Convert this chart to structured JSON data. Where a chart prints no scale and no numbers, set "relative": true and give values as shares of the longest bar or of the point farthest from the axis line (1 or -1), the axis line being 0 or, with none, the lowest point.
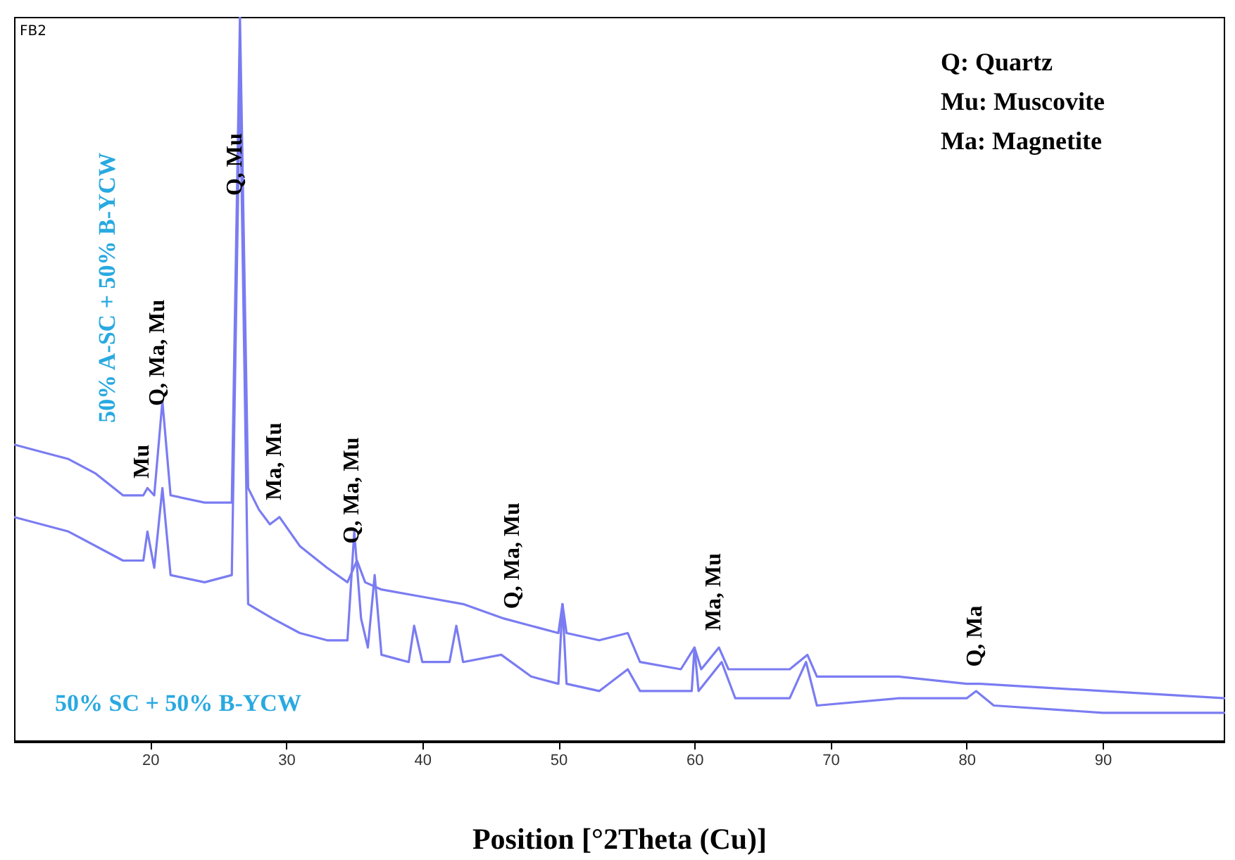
{
  "chart_data": {
    "type": "line",
    "relative": true,
    "xlabel": "Position [°2Theta (Cu)]",
    "xlim": [
      10,
      99
    ],
    "xticks": [
      20,
      30,
      40,
      50,
      60,
      70,
      80,
      90
    ],
    "series": [
      {
        "name": "50% A-SC + 50% B-YCW",
        "color": "#7a7cf2",
        "x": [
          10,
          12,
          14,
          16,
          18,
          19.5,
          19.8,
          20.3,
          20.9,
          21.5,
          24,
          26,
          26.6,
          27.2,
          28,
          28.8,
          29.5,
          31,
          33,
          34.5,
          35.2,
          35.8,
          37,
          40,
          43,
          46,
          48,
          50,
          50.3,
          50.6,
          53,
          55.1,
          56,
          59,
          60,
          60.5,
          61.8,
          62.5,
          67,
          68.3,
          69,
          75,
          80,
          81,
          90,
          99
        ],
        "values": [
          0.41,
          0.4,
          0.39,
          0.37,
          0.34,
          0.34,
          0.35,
          0.34,
          0.47,
          0.34,
          0.33,
          0.33,
          1,
          0.35,
          0.32,
          0.3,
          0.31,
          0.27,
          0.24,
          0.22,
          0.25,
          0.22,
          0.21,
          0.2,
          0.19,
          0.17,
          0.16,
          0.15,
          0.19,
          0.15,
          0.14,
          0.15,
          0.11,
          0.1,
          0.13,
          0.1,
          0.13,
          0.1,
          0.1,
          0.12,
          0.09,
          0.09,
          0.08,
          0.08,
          0.07,
          0.06
        ]
      },
      {
        "name": "50% SC + 50% B-YCW",
        "color": "#7a7cf2",
        "x": [
          10,
          14,
          18,
          19.5,
          19.8,
          20.3,
          20.9,
          21.5,
          24,
          26,
          26.6,
          27.2,
          29,
          31,
          33,
          34.5,
          35,
          35.5,
          36,
          36.5,
          37,
          39,
          39.4,
          40,
          42,
          42.5,
          43,
          45.8,
          48,
          50,
          50.3,
          50.6,
          53,
          55.1,
          56,
          59.8,
          60,
          60.3,
          62,
          63,
          67,
          68.2,
          69,
          75,
          80,
          80.7,
          82,
          90,
          99
        ],
        "values": [
          0.31,
          0.29,
          0.25,
          0.25,
          0.29,
          0.24,
          0.35,
          0.23,
          0.22,
          0.23,
          0.91,
          0.19,
          0.17,
          0.15,
          0.14,
          0.14,
          0.29,
          0.17,
          0.13,
          0.23,
          0.12,
          0.11,
          0.16,
          0.11,
          0.11,
          0.16,
          0.11,
          0.12,
          0.09,
          0.08,
          0.19,
          0.08,
          0.07,
          0.1,
          0.07,
          0.07,
          0.13,
          0.07,
          0.11,
          0.06,
          0.06,
          0.11,
          0.05,
          0.06,
          0.06,
          0.07,
          0.05,
          0.04,
          0.04
        ]
      }
    ],
    "annotations": [
      {
        "text": "Mu",
        "x": 19.8,
        "y": 0.34
      },
      {
        "text": "Q, Ma, Mu",
        "x": 20.9,
        "y": 0.44
      },
      {
        "text": "Q, Mu",
        "x": 26.6,
        "y": 0.73
      },
      {
        "text": "Ma, Mu",
        "x": 29.5,
        "y": 0.31
      },
      {
        "text": "Q, Ma, Mu",
        "x": 35.2,
        "y": 0.25
      },
      {
        "text": "Q, Ma, Mu",
        "x": 47,
        "y": 0.16
      },
      {
        "text": "Ma, Mu",
        "x": 61.8,
        "y": 0.13
      },
      {
        "text": "Q, Ma",
        "x": 81,
        "y": 0.08
      },
      "Q: Quartz",
      "Mu: Muscovite",
      "Ma: Magnetite",
      "FB2"
    ]
  }
}
